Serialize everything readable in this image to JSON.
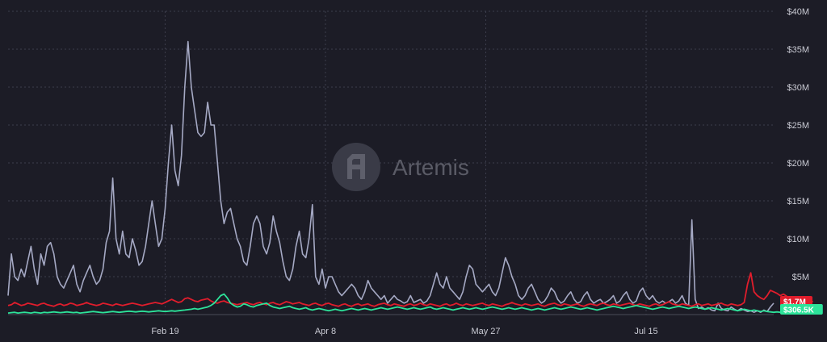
{
  "watermark": {
    "text": "Artemis"
  },
  "colors": {
    "background": "#1c1c26",
    "grid": "#3d3e4c",
    "gray": "#a5a9c4",
    "red": "#e11d2c",
    "green": "#2de39a"
  },
  "chart_data": {
    "type": "line",
    "title": "",
    "xlabel": "",
    "ylabel": "",
    "ylim": [
      0,
      40000000
    ],
    "yticks": [
      {
        "value": 5000000,
        "label": "$5M"
      },
      {
        "value": 10000000,
        "label": "$10M"
      },
      {
        "value": 15000000,
        "label": "$15M"
      },
      {
        "value": 20000000,
        "label": "$20M"
      },
      {
        "value": 25000000,
        "label": "$25M"
      },
      {
        "value": 30000000,
        "label": "$30M"
      },
      {
        "value": 35000000,
        "label": "$35M"
      },
      {
        "value": 40000000,
        "label": "$40M"
      }
    ],
    "xticks": [
      {
        "index": 48,
        "label": "Feb 19"
      },
      {
        "index": 97,
        "label": "Apr 8"
      },
      {
        "index": 146,
        "label": "May 27"
      },
      {
        "index": 195,
        "label": "Jul 15"
      }
    ],
    "grid": true,
    "legend": "none",
    "series": [
      {
        "color": "#a5a9c4",
        "values": [
          2500000,
          8000000,
          5000000,
          4500000,
          6000000,
          5000000,
          7000000,
          9000000,
          6000000,
          4000000,
          8000000,
          6500000,
          9000000,
          9500000,
          8000000,
          5000000,
          4000000,
          3500000,
          4500000,
          5500000,
          6500000,
          4000000,
          3000000,
          4500000,
          5500000,
          6500000,
          5000000,
          4000000,
          4500000,
          6000000,
          9500000,
          11000000,
          18000000,
          10000000,
          8000000,
          11000000,
          8000000,
          7500000,
          10000000,
          8500000,
          6500000,
          7000000,
          9000000,
          12000000,
          15000000,
          12000000,
          9000000,
          10000000,
          14000000,
          20000000,
          25000000,
          19000000,
          17000000,
          21000000,
          30000000,
          36000000,
          30000000,
          27000000,
          24000000,
          23500000,
          24000000,
          28000000,
          25000000,
          25000000,
          20000000,
          15000000,
          12000000,
          13500000,
          14000000,
          12000000,
          10000000,
          9000000,
          7000000,
          6500000,
          9000000,
          12000000,
          13000000,
          12000000,
          9000000,
          8000000,
          9500000,
          13000000,
          11000000,
          9500000,
          7000000,
          5000000,
          4500000,
          6000000,
          9000000,
          11000000,
          8000000,
          7500000,
          10000000,
          14500000,
          5000000,
          4000000,
          6000000,
          3500000,
          5000000,
          5000000,
          4000000,
          3000000,
          2500000,
          3000000,
          3500000,
          4000000,
          3500000,
          2500000,
          2000000,
          3000000,
          4500000,
          3500000,
          3000000,
          2500000,
          2000000,
          2500000,
          1500000,
          2000000,
          2500000,
          2000000,
          1800000,
          1500000,
          1700000,
          2500000,
          1600000,
          1800000,
          2000000,
          1500000,
          1800000,
          2500000,
          4000000,
          5500000,
          4000000,
          3500000,
          5000000,
          3500000,
          3000000,
          2500000,
          2000000,
          3000000,
          5000000,
          6500000,
          6000000,
          4000000,
          3500000,
          3000000,
          3500000,
          4000000,
          3000000,
          2500000,
          3500000,
          5500000,
          7500000,
          6500000,
          5000000,
          4000000,
          2500000,
          2000000,
          2500000,
          3500000,
          4000000,
          3000000,
          2000000,
          1500000,
          1800000,
          2500000,
          3500000,
          3000000,
          2000000,
          1500000,
          1800000,
          2500000,
          3000000,
          2000000,
          1500000,
          1700000,
          2500000,
          3000000,
          2000000,
          1500000,
          1800000,
          2000000,
          1500000,
          1700000,
          2000000,
          2500000,
          1500000,
          1800000,
          2500000,
          3000000,
          2000000,
          1500000,
          1800000,
          3000000,
          3500000,
          2500000,
          2000000,
          2500000,
          1800000,
          1500000,
          1800000,
          1500000,
          1700000,
          2000000,
          1500000,
          1800000,
          2500000,
          1500000,
          1200000,
          12500000,
          2000000,
          800000,
          1000000,
          700000,
          900000,
          600000,
          500000,
          1500000,
          800000,
          600000,
          500000,
          1000000,
          700000,
          500000,
          800000,
          600000,
          400000,
          500000,
          300000,
          500000,
          300000,
          600000,
          400000,
          1000000,
          1500000
        ]
      },
      {
        "color": "#e11d2c",
        "values": [
          1200000,
          1300000,
          1600000,
          1400000,
          1200000,
          1300000,
          1500000,
          1400000,
          1300000,
          1200000,
          1400000,
          1500000,
          1300000,
          1200000,
          1100000,
          1300000,
          1400000,
          1200000,
          1300000,
          1500000,
          1400000,
          1200000,
          1300000,
          1400000,
          1600000,
          1400000,
          1300000,
          1200000,
          1300000,
          1500000,
          1400000,
          1300000,
          1200000,
          1400000,
          1300000,
          1200000,
          1300000,
          1400000,
          1500000,
          1400000,
          1300000,
          1200000,
          1300000,
          1400000,
          1500000,
          1600000,
          1500000,
          1400000,
          1600000,
          1800000,
          2000000,
          1800000,
          1600000,
          1700000,
          2100000,
          2200000,
          2000000,
          1800000,
          1700000,
          1900000,
          2000000,
          2100000,
          1800000,
          1600000,
          1500000,
          1700000,
          1800000,
          1600000,
          1500000,
          1400000,
          1300000,
          1400000,
          1500000,
          1600000,
          1400000,
          1300000,
          1500000,
          1600000,
          1400000,
          1300000,
          1500000,
          1600000,
          1400000,
          1300000,
          1500000,
          1700000,
          1600000,
          1400000,
          1500000,
          1600000,
          1400000,
          1300000,
          1200000,
          1400000,
          1500000,
          1300000,
          1200000,
          1400000,
          1500000,
          1300000,
          1200000,
          1100000,
          1300000,
          1400000,
          1200000,
          1100000,
          1300000,
          1400000,
          1200000,
          1300000,
          1400000,
          1200000,
          1100000,
          1300000,
          1400000,
          1500000,
          1300000,
          1200000,
          1400000,
          1300000,
          1200000,
          1100000,
          1300000,
          1400000,
          1200000,
          1300000,
          1500000,
          1300000,
          1200000,
          1400000,
          1300000,
          1200000,
          1100000,
          1300000,
          1400000,
          1200000,
          1300000,
          1500000,
          1300000,
          1200000,
          1400000,
          1300000,
          1200000,
          1300000,
          1400000,
          1500000,
          1300000,
          1200000,
          1400000,
          1300000,
          1200000,
          1100000,
          1300000,
          1400000,
          1600000,
          1400000,
          1300000,
          1200000,
          1400000,
          1300000,
          1200000,
          1300000,
          1400000,
          1200000,
          1100000,
          1300000,
          1400000,
          1500000,
          1300000,
          1200000,
          1400000,
          1300000,
          1200000,
          1300000,
          1400000,
          1200000,
          1100000,
          1300000,
          1400000,
          1300000,
          1200000,
          1400000,
          1500000,
          1300000,
          1200000,
          1400000,
          1300000,
          1200000,
          1300000,
          1400000,
          1500000,
          1300000,
          1200000,
          1400000,
          1300000,
          1200000,
          1100000,
          1300000,
          1400000,
          1200000,
          1300000,
          1500000,
          1700000,
          1400000,
          1300000,
          1200000,
          1400000,
          1300000,
          1200000,
          1100000,
          1300000,
          1400000,
          1200000,
          1300000,
          1400000,
          1200000,
          1300000,
          1400000,
          1500000,
          1300000,
          1200000,
          1400000,
          1300000,
          1200000,
          1300000,
          1600000,
          4000000,
          5500000,
          3000000,
          2500000,
          2200000,
          2000000,
          2500000,
          3200000,
          3000000,
          2800000,
          2500000,
          2700000,
          2400000,
          2000000,
          2200000,
          2000000,
          1800000,
          1700000,
          2000000,
          1800000,
          1700000
        ]
      },
      {
        "color": "#2de39a",
        "values": [
          200000,
          250000,
          300000,
          200000,
          250000,
          300000,
          250000,
          200000,
          300000,
          250000,
          200000,
          300000,
          250000,
          300000,
          350000,
          300000,
          250000,
          300000,
          350000,
          300000,
          250000,
          300000,
          200000,
          250000,
          300000,
          350000,
          400000,
          350000,
          300000,
          250000,
          300000,
          350000,
          400000,
          350000,
          300000,
          350000,
          400000,
          450000,
          400000,
          350000,
          400000,
          450000,
          400000,
          350000,
          400000,
          450000,
          500000,
          450000,
          400000,
          450000,
          500000,
          450000,
          500000,
          550000,
          600000,
          650000,
          700000,
          800000,
          700000,
          800000,
          900000,
          1000000,
          1200000,
          1500000,
          2000000,
          2500000,
          2700000,
          2200000,
          1500000,
          1200000,
          1000000,
          1100000,
          1400000,
          1300000,
          1100000,
          1000000,
          1200000,
          1300000,
          1400000,
          1500000,
          1200000,
          1000000,
          900000,
          800000,
          900000,
          1000000,
          1100000,
          900000,
          800000,
          700000,
          800000,
          900000,
          700000,
          600000,
          700000,
          800000,
          700000,
          600000,
          500000,
          600000,
          700000,
          600000,
          500000,
          600000,
          700000,
          800000,
          700000,
          600000,
          700000,
          800000,
          700000,
          600000,
          700000,
          800000,
          900000,
          800000,
          700000,
          800000,
          900000,
          1000000,
          900000,
          800000,
          700000,
          800000,
          900000,
          800000,
          700000,
          800000,
          900000,
          1000000,
          800000,
          700000,
          800000,
          900000,
          800000,
          700000,
          600000,
          700000,
          800000,
          900000,
          800000,
          700000,
          800000,
          900000,
          800000,
          700000,
          800000,
          900000,
          1000000,
          900000,
          800000,
          700000,
          800000,
          900000,
          800000,
          700000,
          800000,
          900000,
          800000,
          700000,
          600000,
          700000,
          800000,
          700000,
          600000,
          700000,
          800000,
          900000,
          800000,
          700000,
          800000,
          900000,
          1000000,
          900000,
          800000,
          700000,
          800000,
          900000,
          800000,
          700000,
          600000,
          700000,
          800000,
          900000,
          1000000,
          1100000,
          1000000,
          900000,
          800000,
          900000,
          1000000,
          1100000,
          1200000,
          1100000,
          1000000,
          900000,
          800000,
          700000,
          800000,
          900000,
          1000000,
          900000,
          800000,
          900000,
          1000000,
          1100000,
          1000000,
          900000,
          800000,
          900000,
          1000000,
          900000,
          800000,
          700000,
          800000,
          900000,
          800000,
          700000,
          600000,
          700000,
          800000,
          700000,
          600000,
          500000,
          600000,
          700000,
          600000,
          500000,
          600000,
          500000,
          400000,
          500000,
          400000,
          350000,
          300000,
          350000,
          300000,
          250000,
          300000,
          350000,
          300000,
          306500
        ]
      }
    ],
    "value_labels": [
      {
        "series": 1,
        "text": "$1.7M",
        "value": 1700000
      },
      {
        "series": 2,
        "text": "$306.5K",
        "value": 306500
      }
    ]
  }
}
